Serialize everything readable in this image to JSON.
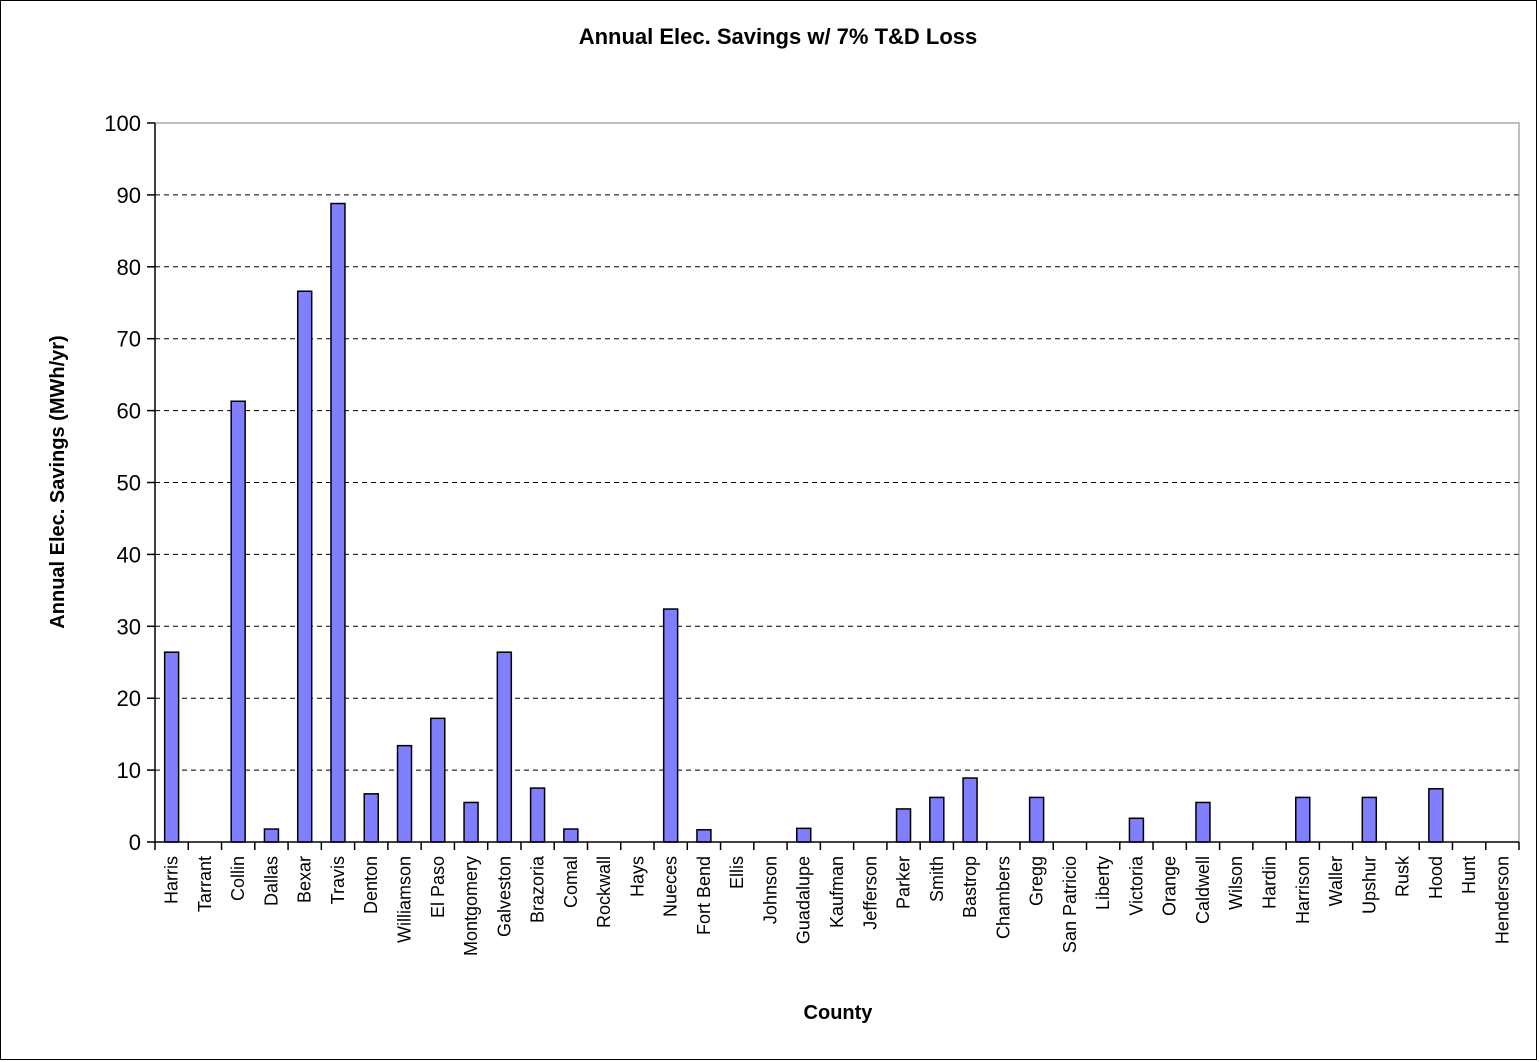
{
  "chart_data": {
    "type": "bar",
    "title": "Annual Elec. Savings w/ 7% T&D Loss",
    "xlabel": "County",
    "ylabel": "Annual Elec. Savings (MWh/yr)",
    "ylim": [
      0,
      100
    ],
    "yticks": [
      0,
      10,
      20,
      30,
      40,
      50,
      60,
      70,
      80,
      90,
      100
    ],
    "grid": true,
    "legend": "none",
    "categories": [
      "Harris",
      "Tarrant",
      "Collin",
      "Dallas",
      "Bexar",
      "Travis",
      "Denton",
      "Williamson",
      "El Paso",
      "Montgomery",
      "Galveston",
      "Brazoria",
      "Comal",
      "Rockwall",
      "Hays",
      "Nueces",
      "Fort Bend",
      "Ellis",
      "Johnson",
      "Guadalupe",
      "Kaufman",
      "Jefferson",
      "Parker",
      "Smith",
      "Bastrop",
      "Chambers",
      "Gregg",
      "San Patricio",
      "Liberty",
      "Victoria",
      "Orange",
      "Caldwell",
      "Wilson",
      "Hardin",
      "Harrison",
      "Waller",
      "Upshur",
      "Rusk",
      "Hood",
      "Hunt",
      "Henderson"
    ],
    "values": [
      26.4,
      0,
      61.3,
      1.8,
      76.6,
      88.8,
      6.7,
      13.4,
      17.2,
      5.5,
      26.4,
      7.5,
      1.8,
      0,
      0,
      32.4,
      1.7,
      0,
      0,
      1.9,
      0,
      0,
      4.6,
      6.2,
      8.9,
      0,
      6.2,
      0,
      0,
      3.3,
      0,
      5.5,
      0,
      0,
      6.2,
      0,
      6.2,
      0,
      7.4,
      0,
      0
    ],
    "colors": {
      "bar_fill": "#7f7fff",
      "bar_stroke": "#000000",
      "grid": "#000000",
      "background": "#ffffff"
    }
  }
}
